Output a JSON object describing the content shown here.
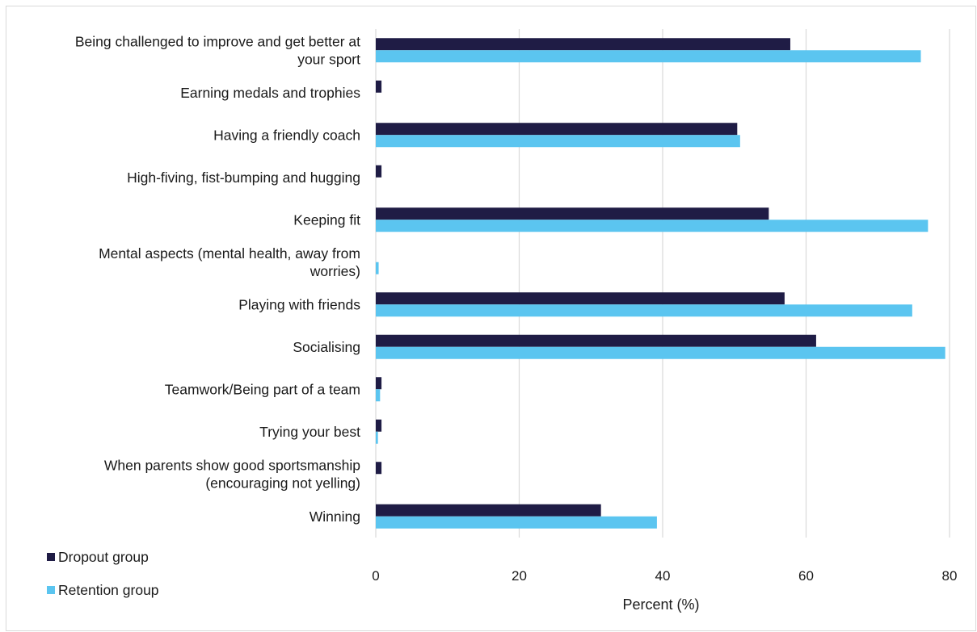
{
  "chart_data": {
    "type": "bar",
    "orientation": "horizontal",
    "categories": [
      [
        "Being challenged to improve and get better at",
        "your sport"
      ],
      [
        "Earning medals and trophies"
      ],
      [
        "Having a friendly coach"
      ],
      [
        "High-fiving, fist-bumping and hugging"
      ],
      [
        "Keeping fit"
      ],
      [
        "Mental aspects (mental health, away from",
        "worries)"
      ],
      [
        "Playing with friends"
      ],
      [
        "Socialising"
      ],
      [
        "Teamwork/Being part of a team"
      ],
      [
        "Trying your best"
      ],
      [
        "When parents show good sportsmanship",
        "(encouraging not yelling)"
      ],
      [
        "Winning"
      ]
    ],
    "series": [
      {
        "name": "Dropout group",
        "color": "#1f1c45",
        "values": [
          57.8,
          0.8,
          50.4,
          0.8,
          54.8,
          0,
          57.0,
          61.4,
          0.8,
          0.8,
          0.8,
          31.4
        ]
      },
      {
        "name": "Retention group",
        "color": "#5bc5f0",
        "values": [
          76.0,
          0,
          50.8,
          0,
          77.0,
          0.4,
          74.8,
          79.4,
          0.6,
          0.3,
          0,
          39.2
        ]
      }
    ],
    "xlabel": "Percent (%)",
    "xlim": [
      0,
      80
    ],
    "xticks": [
      "0",
      "20",
      "40",
      "60",
      "80"
    ],
    "grid": true,
    "legend_position": "bottom-left"
  }
}
